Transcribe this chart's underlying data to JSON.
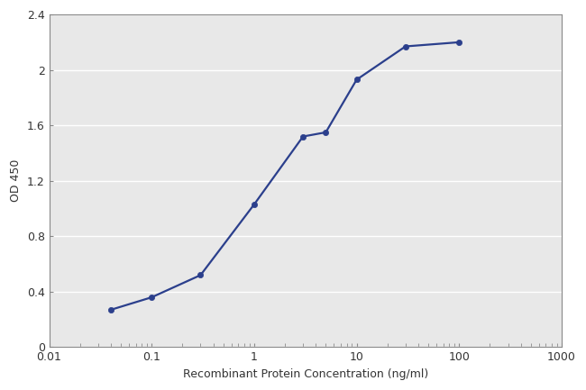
{
  "x": [
    0.04,
    0.1,
    0.3,
    1.0,
    3.0,
    5.0,
    10.0,
    30.0,
    100.0
  ],
  "y": [
    0.27,
    0.36,
    0.52,
    1.03,
    1.52,
    1.55,
    1.93,
    2.17,
    2.2
  ],
  "line_color": "#2b3f8c",
  "marker_color": "#2b3f8c",
  "marker_size": 4.5,
  "line_width": 1.6,
  "xlabel": "Recombinant Protein Concentration (ng/ml)",
  "ylabel": "OD 450",
  "xlim_log": [
    -2,
    3
  ],
  "xlim": [
    0.01,
    1000
  ],
  "ylim": [
    0,
    2.4
  ],
  "yticks": [
    0,
    0.4,
    0.8,
    1.2,
    1.6,
    2.0,
    2.4
  ],
  "xticks": [
    0.01,
    0.1,
    1,
    10,
    100,
    1000
  ],
  "xtick_labels": [
    "0.01",
    "0.1",
    "1",
    "10",
    "100",
    "1000"
  ],
  "plot_bg_color": "#e8e8e8",
  "fig_bg_color": "#ffffff",
  "grid_color": "#ffffff",
  "spine_color": "#888888",
  "label_fontsize": 9,
  "tick_fontsize": 9,
  "label_color": "#333333",
  "tick_color": "#333333"
}
